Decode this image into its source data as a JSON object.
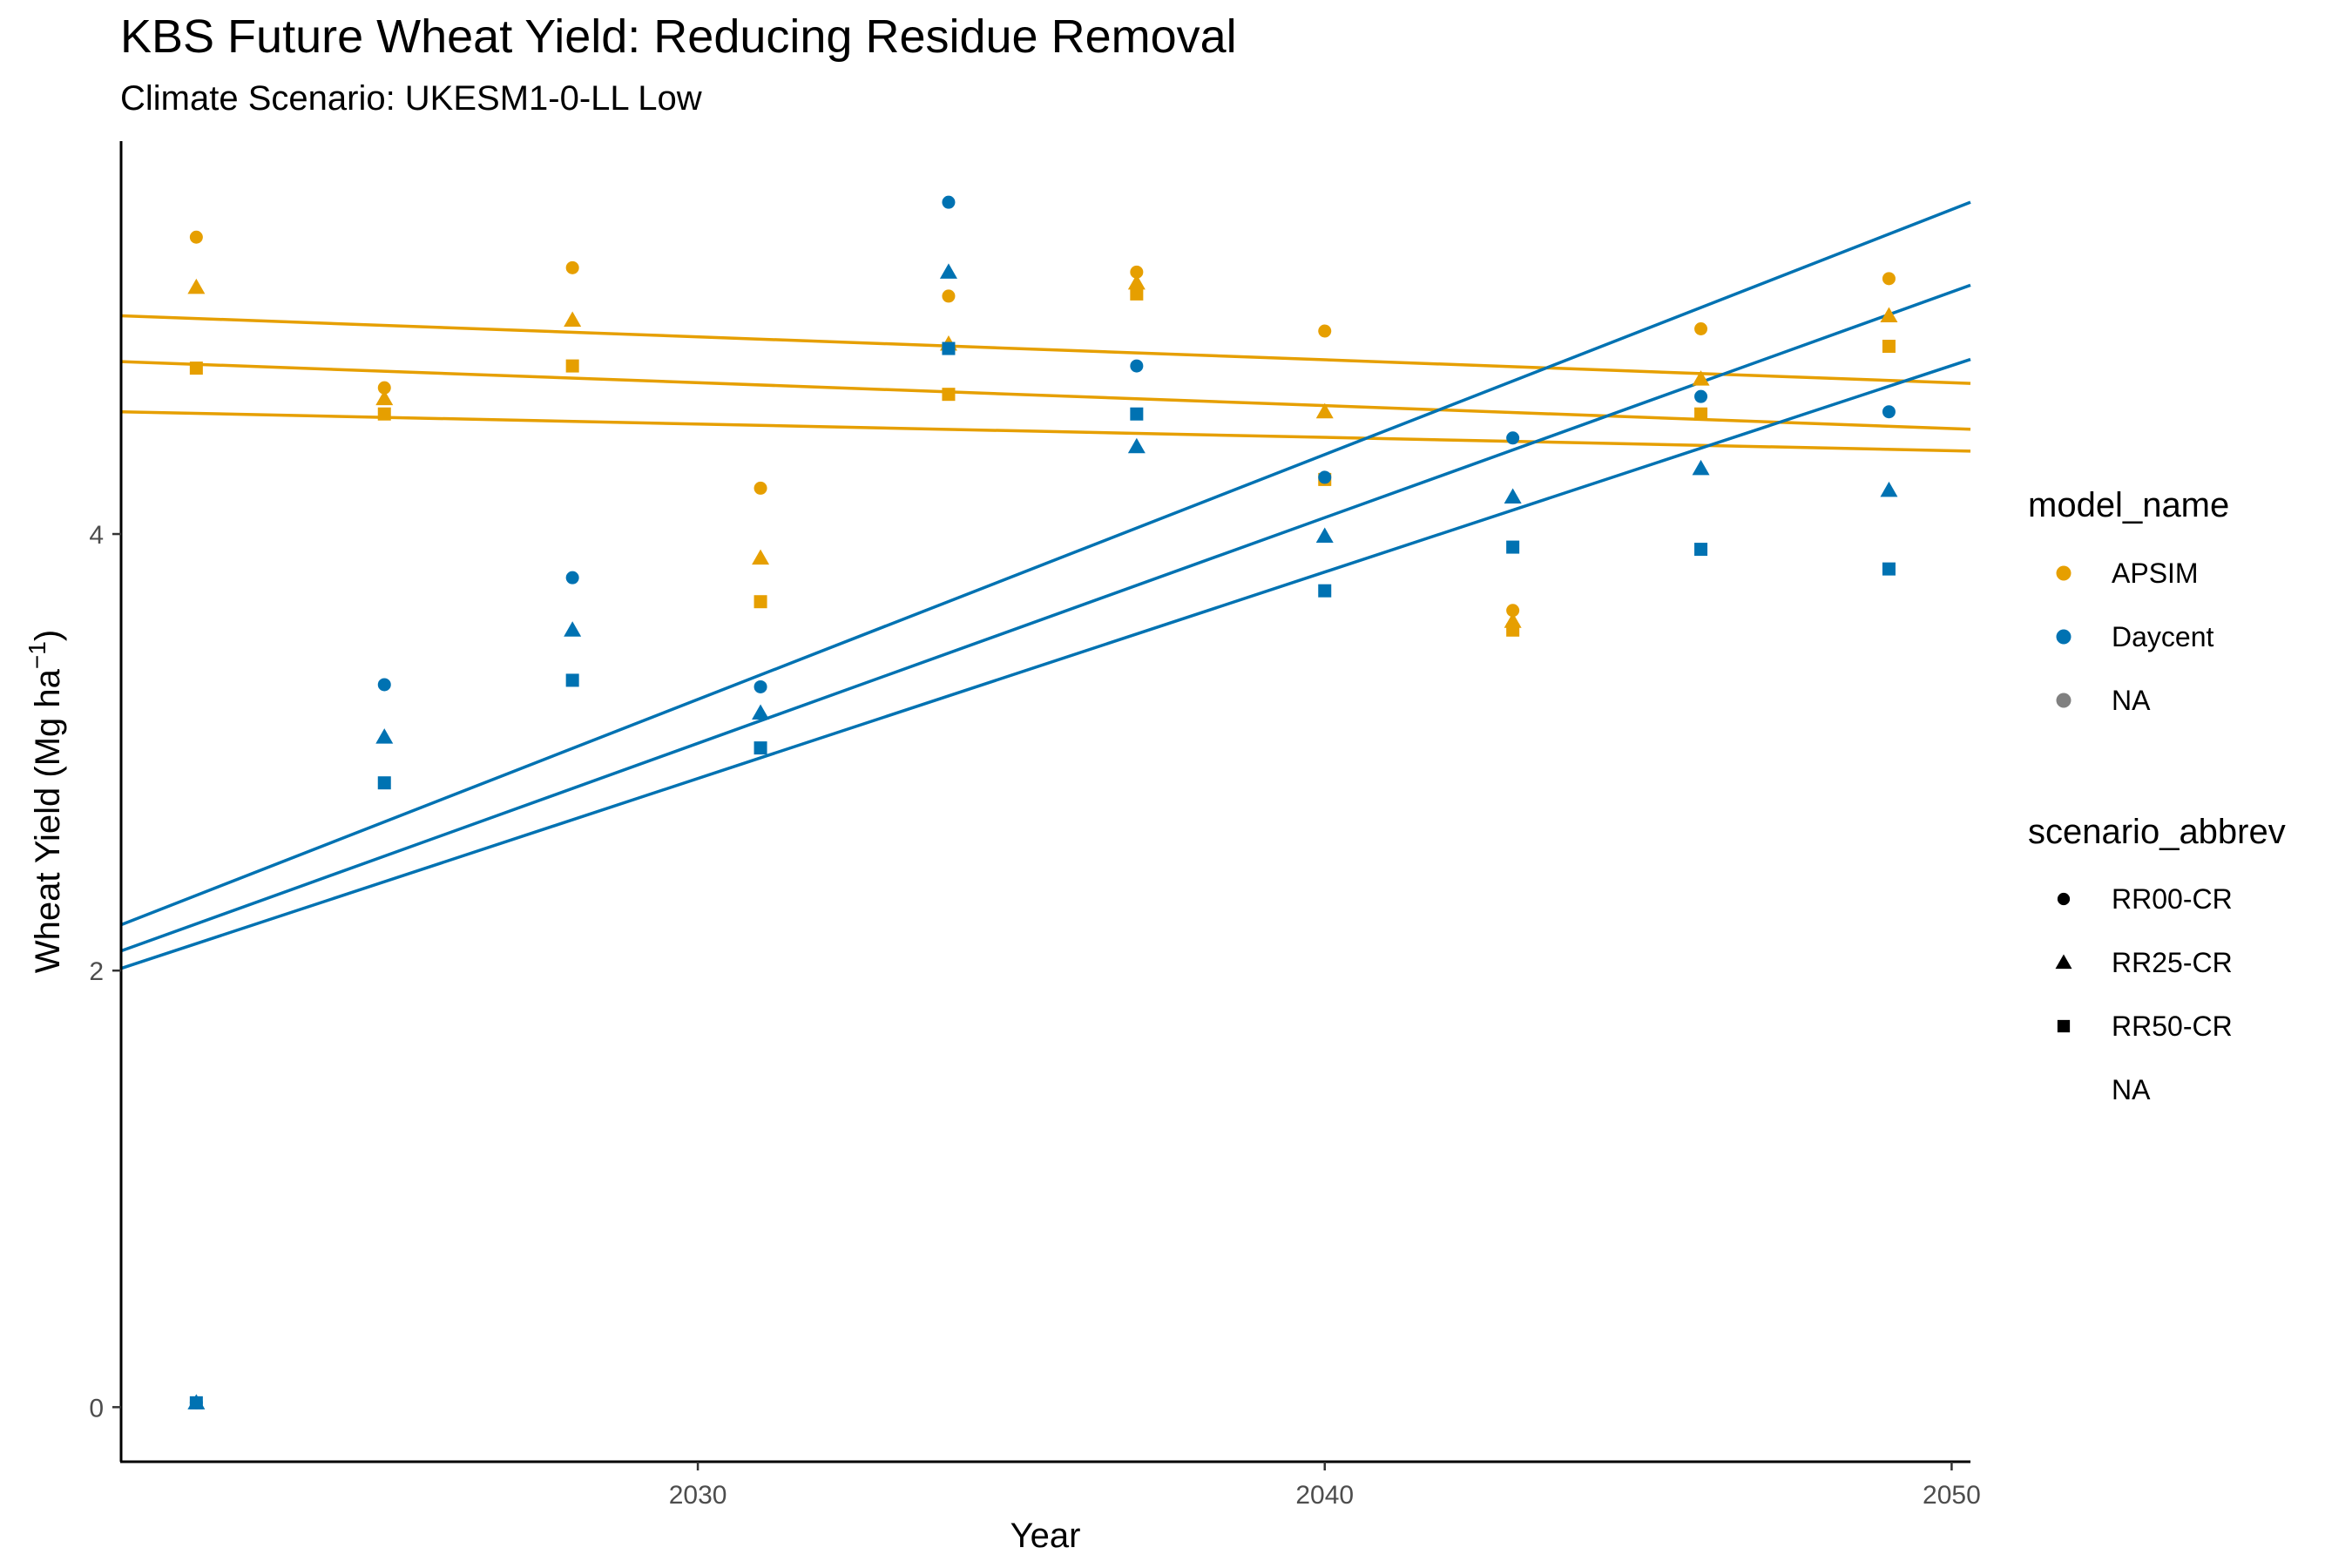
{
  "chart_data": {
    "type": "scatter",
    "title": "KBS Future Wheat Yield: Reducing Residue Removal",
    "subtitle": "Climate Scenario: UKESM1-0-LL Low",
    "xlabel": "Year",
    "ylabel": "Wheat Yield (Mg ha",
    "ylabel_sup": "−1",
    "ylabel_close": ")",
    "xlim": [
      2020.8,
      2050.3
    ],
    "ylim": [
      -0.25,
      5.8
    ],
    "x_ticks": [
      2030,
      2040,
      2050
    ],
    "y_ticks": [
      0,
      2,
      4
    ],
    "grid": false,
    "legend_position": "right",
    "colors": {
      "APSIM": "#E69F00",
      "Daycent": "#0072B2",
      "NA": "#808080"
    },
    "legend": {
      "color_title": "model_name",
      "color_entries": [
        "APSIM",
        "Daycent",
        "NA"
      ],
      "shape_title": "scenario_abbrev",
      "shape_entries": [
        {
          "label": "RR00-CR",
          "shape": "circle"
        },
        {
          "label": "RR25-CR",
          "shape": "triangle"
        },
        {
          "label": "RR50-CR",
          "shape": "square"
        },
        {
          "label": "NA",
          "shape": "none"
        }
      ]
    },
    "series": [
      {
        "model": "APSIM",
        "scenario": "RR00-CR",
        "shape": "circle",
        "x": [
          2022,
          2025,
          2028,
          2031,
          2034,
          2037,
          2040,
          2043,
          2046,
          2049
        ],
        "y": [
          5.36,
          4.67,
          5.22,
          4.21,
          5.09,
          5.2,
          4.93,
          3.65,
          4.94,
          5.17
        ]
      },
      {
        "model": "APSIM",
        "scenario": "RR25-CR",
        "shape": "triangle",
        "x": [
          2022,
          2025,
          2028,
          2031,
          2034,
          2037,
          2040,
          2043,
          2046,
          2049
        ],
        "y": [
          5.13,
          4.62,
          4.98,
          3.89,
          4.87,
          5.15,
          4.56,
          3.6,
          4.71,
          5.0
        ]
      },
      {
        "model": "APSIM",
        "scenario": "RR50-CR",
        "shape": "square",
        "x": [
          2022,
          2025,
          2028,
          2031,
          2034,
          2037,
          2040,
          2043,
          2046,
          2049
        ],
        "y": [
          4.76,
          4.55,
          4.77,
          3.69,
          4.64,
          5.1,
          4.25,
          3.56,
          4.55,
          4.86
        ]
      },
      {
        "model": "Daycent",
        "scenario": "RR00-CR",
        "shape": "circle",
        "x": [
          2022,
          2025,
          2028,
          2031,
          2034,
          2037,
          2040,
          2043,
          2046,
          2049
        ],
        "y": [
          0.02,
          3.31,
          3.8,
          3.3,
          5.52,
          4.77,
          4.26,
          4.44,
          4.63,
          4.56
        ]
      },
      {
        "model": "Daycent",
        "scenario": "RR25-CR",
        "shape": "triangle",
        "x": [
          2022,
          2025,
          2028,
          2031,
          2034,
          2037,
          2040,
          2043,
          2046,
          2049
        ],
        "y": [
          0.02,
          3.07,
          3.56,
          3.18,
          5.2,
          4.4,
          3.99,
          4.17,
          4.3,
          4.2
        ]
      },
      {
        "model": "Daycent",
        "scenario": "RR50-CR",
        "shape": "square",
        "x": [
          2022,
          2025,
          2028,
          2031,
          2034,
          2037,
          2040,
          2043,
          2046,
          2049
        ],
        "y": [
          0.02,
          2.86,
          3.33,
          3.02,
          4.85,
          4.55,
          3.74,
          3.94,
          3.93,
          3.84
        ]
      }
    ],
    "trend_lines": [
      {
        "model": "APSIM",
        "x": [
          2020.8,
          2050.3
        ],
        "y": [
          5.0,
          4.69
        ]
      },
      {
        "model": "APSIM",
        "x": [
          2020.8,
          2050.3
        ],
        "y": [
          4.79,
          4.48
        ]
      },
      {
        "model": "APSIM",
        "x": [
          2020.8,
          2050.3
        ],
        "y": [
          4.56,
          4.38
        ]
      },
      {
        "model": "Daycent",
        "x": [
          2020.8,
          2050.3
        ],
        "y": [
          2.21,
          5.52
        ]
      },
      {
        "model": "Daycent",
        "x": [
          2020.8,
          2050.3
        ],
        "y": [
          2.09,
          5.14
        ]
      },
      {
        "model": "Daycent",
        "x": [
          2020.8,
          2050.3
        ],
        "y": [
          2.01,
          4.8
        ]
      }
    ]
  }
}
